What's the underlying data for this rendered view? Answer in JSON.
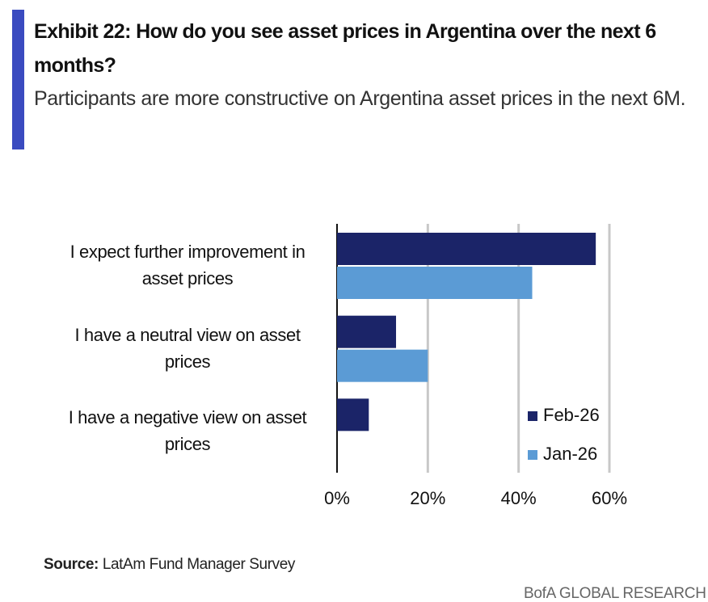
{
  "title": "Exhibit 22: How do you see asset prices in Argentina over the next 6 months?",
  "subtitle": "Participants are more constructive on Argentina asset prices in the next 6M.",
  "source": {
    "label": "Source:",
    "text": "LatAm Fund Manager Survey"
  },
  "footer": "BofA GLOBAL RESEARCH",
  "chart_data": {
    "type": "hbar",
    "categories": [
      "I expect further improvement in asset prices",
      "I have a neutral view on asset prices",
      "I have a negative view on asset prices"
    ],
    "series": [
      {
        "name": "Feb-26",
        "color": "#1b2468",
        "values": [
          57,
          13,
          7
        ]
      },
      {
        "name": "Jan-26",
        "color": "#5b9bd5",
        "values": [
          43,
          20,
          0
        ]
      }
    ],
    "xlim": [
      0,
      60
    ],
    "xticks": [
      {
        "value": 0,
        "label": "0%"
      },
      {
        "value": 20,
        "label": "20%"
      },
      {
        "value": 40,
        "label": "40%"
      },
      {
        "value": 60,
        "label": "60%"
      }
    ],
    "grid": true,
    "legend": "lower right"
  }
}
